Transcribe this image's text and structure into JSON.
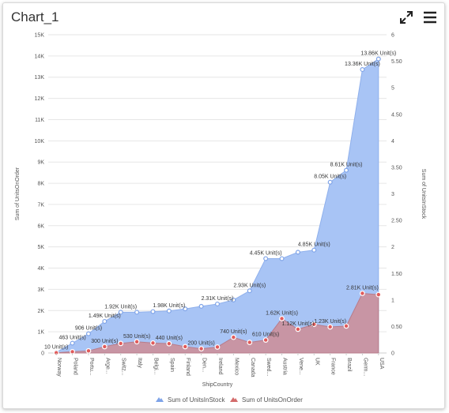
{
  "header": {
    "title": "Chart_1",
    "expand_icon": "expand-icon",
    "menu_icon": "hamburger-menu-icon"
  },
  "colors": {
    "stock_fill": "#a8c4f5",
    "stock_line": "#8fb0ec",
    "stock_marker": "#ffffff",
    "stock_marker_stroke": "#7ea3e8",
    "order_fill": "#c9929f",
    "order_marker": "#e05a5a",
    "grid": "#e6e6e6",
    "axis_text": "#555555"
  },
  "chart_data": {
    "type": "area",
    "categories": [
      "Norway",
      "Poland",
      "Portu...",
      "Arge...",
      "Switz...",
      "Italy",
      "Belgi...",
      "Spain",
      "Finland",
      "Den...",
      "Ireland",
      "Mexico",
      "Canada",
      "Swed...",
      "Austria",
      "Vene...",
      "UK",
      "France",
      "Brazil",
      "Germ...",
      "USA"
    ],
    "xlabel": "ShipCountry",
    "ylabel_left": "Sum of UnitsOnOrder",
    "ylabel_right": "Sum of UnitsInStock",
    "y_left_range": [
      0,
      15000
    ],
    "y_left_ticks": [
      "0",
      "1K",
      "2K",
      "3K",
      "4K",
      "5K",
      "6K",
      "7K",
      "8K",
      "9K",
      "10K",
      "11K",
      "12K",
      "13K",
      "14K",
      "15K"
    ],
    "y_right_range": [
      0,
      6
    ],
    "y_right_ticks": [
      "0",
      "0.50",
      "1",
      "1.50",
      "2",
      "2.50",
      "3",
      "3.50",
      "4",
      "4.50",
      "5",
      "5.50",
      "6"
    ],
    "grid": true,
    "legend_position": "bottom",
    "series": [
      {
        "name": "Sum of UnitsInStock",
        "values": [
          30,
          463,
          906,
          1490,
          1920,
          1920,
          1950,
          1980,
          2080,
          2200,
          2310,
          2500,
          2930,
          4450,
          4450,
          4750,
          4850,
          8050,
          8610,
          13360,
          13860
        ],
        "labels": [
          "",
          "463 Unit(s)",
          "906 Unit(s)",
          "1.49K Unit(s)",
          "1.92K Unit(s)",
          "",
          "",
          "1.98K Unit(s)",
          "",
          "",
          "2.31K Unit(s)",
          "",
          "2.93K Unit(s)",
          "4.45K Unit(s)",
          "",
          "",
          "4.85K Unit(s)",
          "8.05K Unit(s)",
          "8.61K Unit(s)",
          "13.36K Unit(s)",
          "13.86K Unit(s)"
        ]
      },
      {
        "name": "Sum of UnitsOnOrder",
        "values": [
          10,
          60,
          100,
          300,
          450,
          530,
          470,
          440,
          300,
          200,
          280,
          740,
          500,
          610,
          1620,
          1120,
          1350,
          1230,
          1270,
          2810,
          2750
        ],
        "labels": [
          "10 Unit(s)",
          "",
          "",
          "300 Unit(s)",
          "",
          "530 Unit(s)",
          "",
          "440 Unit(s)",
          "",
          "200 Unit(s)",
          "",
          "740 Unit(s)",
          "",
          "610 Unit(s)",
          "1.62K Unit(s)",
          "1.12K Unit(s)",
          "",
          "1.23K Unit(s)",
          "",
          "2.81K Unit(s)",
          ""
        ]
      }
    ]
  }
}
